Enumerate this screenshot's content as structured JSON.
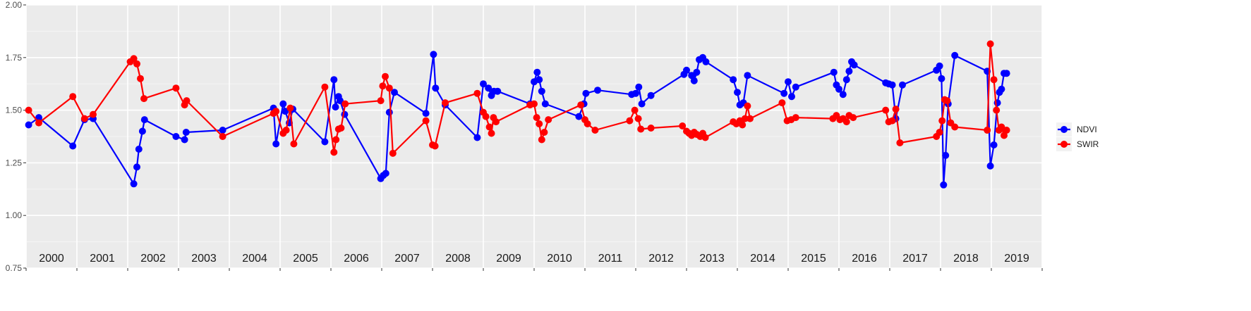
{
  "chart_data": {
    "type": "line",
    "ylim": [
      0.75,
      2.0
    ],
    "yticks": [
      "0.75",
      "1.00",
      "1.25",
      "1.50",
      "1.75",
      "2.00"
    ],
    "ytick_values": [
      0.75,
      1.0,
      1.25,
      1.5,
      1.75,
      2.0
    ],
    "year_labels": [
      "2000",
      "2001",
      "2002",
      "2003",
      "2004",
      "2005",
      "2006",
      "2007",
      "2008",
      "2009",
      "2010",
      "2011",
      "2012",
      "2013",
      "2014",
      "2015",
      "2016",
      "2017",
      "2018",
      "2019"
    ],
    "xlim": [
      2000.0,
      2020.0
    ],
    "grid": true,
    "legend_position": "right",
    "series": [
      {
        "name": "NDVI",
        "color": "#0000ff",
        "points": [
          [
            2000.05,
            1.43
          ],
          [
            2000.25,
            1.465
          ],
          [
            2000.92,
            1.33
          ],
          [
            2001.15,
            1.455
          ],
          [
            2001.32,
            1.46
          ],
          [
            2002.12,
            1.15
          ],
          [
            2002.18,
            1.23
          ],
          [
            2002.22,
            1.315
          ],
          [
            2002.29,
            1.4
          ],
          [
            2002.33,
            1.455
          ],
          [
            2002.95,
            1.375
          ],
          [
            2003.12,
            1.36
          ],
          [
            2003.15,
            1.395
          ],
          [
            2003.87,
            1.405
          ],
          [
            2004.87,
            1.51
          ],
          [
            2004.92,
            1.34
          ],
          [
            2005.06,
            1.53
          ],
          [
            2005.1,
            1.495
          ],
          [
            2005.18,
            1.44
          ],
          [
            2005.25,
            1.505
          ],
          [
            2005.88,
            1.35
          ],
          [
            2006.06,
            1.645
          ],
          [
            2006.09,
            1.515
          ],
          [
            2006.15,
            1.565
          ],
          [
            2006.18,
            1.545
          ],
          [
            2006.27,
            1.48
          ],
          [
            2006.98,
            1.175
          ],
          [
            2007.03,
            1.19
          ],
          [
            2007.08,
            1.2
          ],
          [
            2007.15,
            1.49
          ],
          [
            2007.25,
            1.585
          ],
          [
            2007.87,
            1.485
          ],
          [
            2008.02,
            1.765
          ],
          [
            2008.06,
            1.605
          ],
          [
            2008.25,
            1.525
          ],
          [
            2008.88,
            1.37
          ],
          [
            2009.0,
            1.625
          ],
          [
            2009.1,
            1.605
          ],
          [
            2009.16,
            1.57
          ],
          [
            2009.21,
            1.59
          ],
          [
            2009.28,
            1.59
          ],
          [
            2009.92,
            1.53
          ],
          [
            2010.0,
            1.635
          ],
          [
            2010.06,
            1.68
          ],
          [
            2010.1,
            1.645
          ],
          [
            2010.15,
            1.59
          ],
          [
            2010.22,
            1.53
          ],
          [
            2010.88,
            1.47
          ],
          [
            2010.98,
            1.53
          ],
          [
            2011.02,
            1.58
          ],
          [
            2011.25,
            1.595
          ],
          [
            2011.92,
            1.575
          ],
          [
            2012.0,
            1.58
          ],
          [
            2012.06,
            1.61
          ],
          [
            2012.12,
            1.53
          ],
          [
            2012.3,
            1.57
          ],
          [
            2012.95,
            1.67
          ],
          [
            2013.0,
            1.69
          ],
          [
            2013.1,
            1.665
          ],
          [
            2013.15,
            1.64
          ],
          [
            2013.2,
            1.68
          ],
          [
            2013.25,
            1.74
          ],
          [
            2013.32,
            1.75
          ],
          [
            2013.38,
            1.73
          ],
          [
            2013.92,
            1.645
          ],
          [
            2014.0,
            1.585
          ],
          [
            2014.05,
            1.525
          ],
          [
            2014.12,
            1.535
          ],
          [
            2014.2,
            1.665
          ],
          [
            2014.92,
            1.58
          ],
          [
            2015.0,
            1.635
          ],
          [
            2015.07,
            1.565
          ],
          [
            2015.15,
            1.61
          ],
          [
            2015.9,
            1.68
          ],
          [
            2015.95,
            1.62
          ],
          [
            2016.0,
            1.6
          ],
          [
            2016.08,
            1.575
          ],
          [
            2016.15,
            1.645
          ],
          [
            2016.2,
            1.685
          ],
          [
            2016.25,
            1.73
          ],
          [
            2016.3,
            1.715
          ],
          [
            2016.92,
            1.63
          ],
          [
            2016.98,
            1.625
          ],
          [
            2017.05,
            1.62
          ],
          [
            2017.12,
            1.46
          ],
          [
            2017.25,
            1.62
          ],
          [
            2017.92,
            1.69
          ],
          [
            2017.98,
            1.71
          ],
          [
            2018.02,
            1.65
          ],
          [
            2018.06,
            1.145
          ],
          [
            2018.1,
            1.285
          ],
          [
            2018.15,
            1.53
          ],
          [
            2018.28,
            1.76
          ],
          [
            2018.92,
            1.685
          ],
          [
            2018.98,
            1.235
          ],
          [
            2019.05,
            1.335
          ],
          [
            2019.12,
            1.535
          ],
          [
            2019.16,
            1.585
          ],
          [
            2019.2,
            1.6
          ],
          [
            2019.25,
            1.675
          ],
          [
            2019.3,
            1.675
          ]
        ]
      },
      {
        "name": "SWIR",
        "color": "#ff0000",
        "points": [
          [
            2000.05,
            1.5
          ],
          [
            2000.25,
            1.44
          ],
          [
            2000.92,
            1.565
          ],
          [
            2001.15,
            1.46
          ],
          [
            2001.32,
            1.48
          ],
          [
            2002.05,
            1.73
          ],
          [
            2002.12,
            1.745
          ],
          [
            2002.18,
            1.72
          ],
          [
            2002.25,
            1.65
          ],
          [
            2002.32,
            1.555
          ],
          [
            2002.95,
            1.605
          ],
          [
            2003.12,
            1.525
          ],
          [
            2003.16,
            1.545
          ],
          [
            2003.87,
            1.375
          ],
          [
            2004.87,
            1.485
          ],
          [
            2004.92,
            1.495
          ],
          [
            2005.06,
            1.39
          ],
          [
            2005.12,
            1.405
          ],
          [
            2005.2,
            1.51
          ],
          [
            2005.27,
            1.34
          ],
          [
            2005.88,
            1.61
          ],
          [
            2006.06,
            1.3
          ],
          [
            2006.1,
            1.36
          ],
          [
            2006.15,
            1.41
          ],
          [
            2006.2,
            1.415
          ],
          [
            2006.28,
            1.53
          ],
          [
            2006.98,
            1.545
          ],
          [
            2007.02,
            1.615
          ],
          [
            2007.07,
            1.66
          ],
          [
            2007.15,
            1.605
          ],
          [
            2007.22,
            1.295
          ],
          [
            2007.87,
            1.45
          ],
          [
            2008.0,
            1.335
          ],
          [
            2008.05,
            1.33
          ],
          [
            2008.25,
            1.535
          ],
          [
            2008.88,
            1.58
          ],
          [
            2009.0,
            1.49
          ],
          [
            2009.05,
            1.47
          ],
          [
            2009.12,
            1.42
          ],
          [
            2009.16,
            1.39
          ],
          [
            2009.2,
            1.465
          ],
          [
            2009.25,
            1.445
          ],
          [
            2009.92,
            1.525
          ],
          [
            2010.0,
            1.53
          ],
          [
            2010.05,
            1.465
          ],
          [
            2010.1,
            1.435
          ],
          [
            2010.15,
            1.36
          ],
          [
            2010.2,
            1.395
          ],
          [
            2010.28,
            1.455
          ],
          [
            2010.92,
            1.525
          ],
          [
            2011.0,
            1.455
          ],
          [
            2011.05,
            1.435
          ],
          [
            2011.2,
            1.405
          ],
          [
            2011.88,
            1.45
          ],
          [
            2011.98,
            1.5
          ],
          [
            2012.05,
            1.46
          ],
          [
            2012.1,
            1.41
          ],
          [
            2012.3,
            1.415
          ],
          [
            2012.92,
            1.425
          ],
          [
            2013.0,
            1.4
          ],
          [
            2013.05,
            1.39
          ],
          [
            2013.1,
            1.38
          ],
          [
            2013.15,
            1.395
          ],
          [
            2013.2,
            1.385
          ],
          [
            2013.27,
            1.375
          ],
          [
            2013.32,
            1.39
          ],
          [
            2013.37,
            1.37
          ],
          [
            2013.92,
            1.445
          ],
          [
            2013.98,
            1.435
          ],
          [
            2014.05,
            1.45
          ],
          [
            2014.1,
            1.43
          ],
          [
            2014.15,
            1.46
          ],
          [
            2014.2,
            1.52
          ],
          [
            2014.25,
            1.46
          ],
          [
            2014.88,
            1.535
          ],
          [
            2014.98,
            1.45
          ],
          [
            2015.06,
            1.455
          ],
          [
            2015.15,
            1.465
          ],
          [
            2015.88,
            1.46
          ],
          [
            2015.95,
            1.475
          ],
          [
            2016.02,
            1.455
          ],
          [
            2016.08,
            1.46
          ],
          [
            2016.15,
            1.445
          ],
          [
            2016.2,
            1.475
          ],
          [
            2016.28,
            1.465
          ],
          [
            2016.92,
            1.5
          ],
          [
            2016.98,
            1.445
          ],
          [
            2017.05,
            1.45
          ],
          [
            2017.12,
            1.505
          ],
          [
            2017.2,
            1.345
          ],
          [
            2017.92,
            1.375
          ],
          [
            2017.98,
            1.395
          ],
          [
            2018.03,
            1.45
          ],
          [
            2018.08,
            1.55
          ],
          [
            2018.13,
            1.545
          ],
          [
            2018.2,
            1.44
          ],
          [
            2018.28,
            1.42
          ],
          [
            2018.92,
            1.405
          ],
          [
            2018.98,
            1.815
          ],
          [
            2019.05,
            1.645
          ],
          [
            2019.1,
            1.5
          ],
          [
            2019.15,
            1.405
          ],
          [
            2019.2,
            1.42
          ],
          [
            2019.25,
            1.38
          ],
          [
            2019.3,
            1.405
          ]
        ]
      }
    ]
  }
}
